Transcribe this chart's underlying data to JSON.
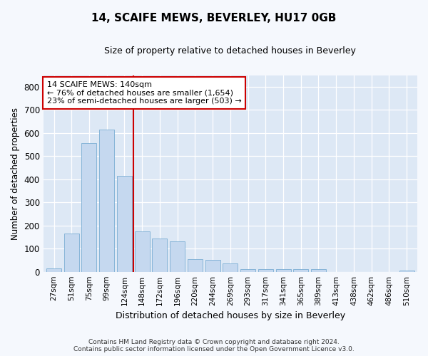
{
  "title": "14, SCAIFE MEWS, BEVERLEY, HU17 0GB",
  "subtitle": "Size of property relative to detached houses in Beverley",
  "xlabel": "Distribution of detached houses by size in Beverley",
  "ylabel": "Number of detached properties",
  "bar_color": "#c5d8ef",
  "bar_edge_color": "#7aadd4",
  "fig_bg_color": "#f5f8fd",
  "plot_bg_color": "#dde8f5",
  "grid_color": "#ffffff",
  "categories": [
    "27sqm",
    "51sqm",
    "75sqm",
    "99sqm",
    "124sqm",
    "148sqm",
    "172sqm",
    "196sqm",
    "220sqm",
    "244sqm",
    "269sqm",
    "293sqm",
    "317sqm",
    "341sqm",
    "365sqm",
    "389sqm",
    "413sqm",
    "438sqm",
    "462sqm",
    "486sqm",
    "510sqm"
  ],
  "values": [
    15,
    165,
    555,
    615,
    415,
    175,
    145,
    130,
    55,
    50,
    35,
    10,
    10,
    10,
    10,
    10,
    0,
    0,
    0,
    0,
    5
  ],
  "red_line_index": 4.5,
  "annotation_title": "14 SCAIFE MEWS: 140sqm",
  "annotation_line1": "← 76% of detached houses are smaller (1,654)",
  "annotation_line2": "23% of semi-detached houses are larger (503) →",
  "ylim": [
    0,
    850
  ],
  "yticks": [
    0,
    100,
    200,
    300,
    400,
    500,
    600,
    700,
    800
  ],
  "footer1": "Contains HM Land Registry data © Crown copyright and database right 2024.",
  "footer2": "Contains public sector information licensed under the Open Government Licence v3.0."
}
